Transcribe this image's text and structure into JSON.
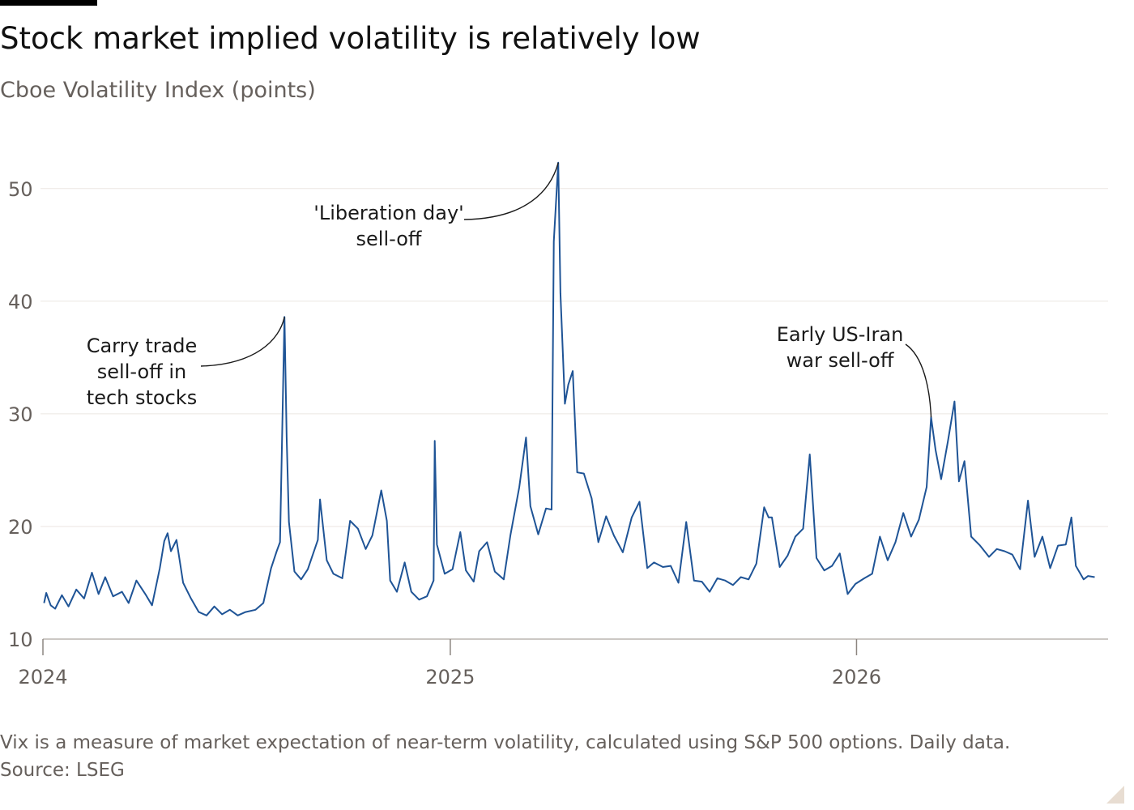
{
  "title": "Stock market implied volatility is relatively low",
  "subtitle": "Cboe Volatility Index (points)",
  "footnote": "Vix is a measure of market expectation of near-term volatility, calculated using S&P 500 options. Daily data.",
  "source": "Source: LSEG",
  "chart_data": {
    "type": "line",
    "title": "Stock market implied volatility is relatively low",
    "ylabel": "Cboe Volatility Index (points)",
    "xlabel": "",
    "ylim": [
      10,
      52
    ],
    "xlim": [
      "2024-01-01",
      "2026-08-15"
    ],
    "y_ticks": [
      10,
      20,
      30,
      40,
      50
    ],
    "x_ticks": [
      {
        "date": "2024-01-01",
        "label": "2024"
      },
      {
        "date": "2025-01-01",
        "label": "2025"
      },
      {
        "date": "2026-01-01",
        "label": "2026"
      }
    ],
    "grid": "horizontal",
    "color": "#1f5496",
    "series": [
      {
        "values": [
          [
            "2024-01-02",
            13.2
          ],
          [
            "2024-01-04",
            14.1
          ],
          [
            "2024-01-08",
            13.0
          ],
          [
            "2024-01-12",
            12.7
          ],
          [
            "2024-01-18",
            13.9
          ],
          [
            "2024-01-24",
            12.9
          ],
          [
            "2024-01-31",
            14.4
          ],
          [
            "2024-02-07",
            13.6
          ],
          [
            "2024-02-14",
            15.9
          ],
          [
            "2024-02-20",
            14.0
          ],
          [
            "2024-02-26",
            15.5
          ],
          [
            "2024-03-04",
            13.8
          ],
          [
            "2024-03-12",
            14.2
          ],
          [
            "2024-03-18",
            13.2
          ],
          [
            "2024-03-25",
            15.2
          ],
          [
            "2024-04-02",
            14.0
          ],
          [
            "2024-04-08",
            13.0
          ],
          [
            "2024-04-15",
            16.3
          ],
          [
            "2024-04-19",
            18.7
          ],
          [
            "2024-04-22",
            19.4
          ],
          [
            "2024-04-25",
            17.8
          ],
          [
            "2024-04-30",
            18.8
          ],
          [
            "2024-05-06",
            15.0
          ],
          [
            "2024-05-13",
            13.6
          ],
          [
            "2024-05-20",
            12.4
          ],
          [
            "2024-05-27",
            12.1
          ],
          [
            "2024-06-03",
            12.9
          ],
          [
            "2024-06-10",
            12.2
          ],
          [
            "2024-06-17",
            12.6
          ],
          [
            "2024-06-24",
            12.1
          ],
          [
            "2024-07-01",
            12.4
          ],
          [
            "2024-07-10",
            12.6
          ],
          [
            "2024-07-17",
            13.2
          ],
          [
            "2024-07-24",
            16.3
          ],
          [
            "2024-07-29",
            17.8
          ],
          [
            "2024-08-01",
            18.6
          ],
          [
            "2024-08-05",
            38.6
          ],
          [
            "2024-08-07",
            27.9
          ],
          [
            "2024-08-09",
            20.4
          ],
          [
            "2024-08-14",
            16.0
          ],
          [
            "2024-08-20",
            15.3
          ],
          [
            "2024-08-26",
            16.2
          ],
          [
            "2024-09-04",
            18.8
          ],
          [
            "2024-09-06",
            22.4
          ],
          [
            "2024-09-12",
            17.0
          ],
          [
            "2024-09-18",
            15.8
          ],
          [
            "2024-09-26",
            15.4
          ],
          [
            "2024-10-03",
            20.5
          ],
          [
            "2024-10-10",
            19.8
          ],
          [
            "2024-10-17",
            18.0
          ],
          [
            "2024-10-23",
            19.2
          ],
          [
            "2024-10-31",
            23.2
          ],
          [
            "2024-11-05",
            20.5
          ],
          [
            "2024-11-08",
            15.2
          ],
          [
            "2024-11-14",
            14.2
          ],
          [
            "2024-11-21",
            16.8
          ],
          [
            "2024-11-27",
            14.2
          ],
          [
            "2024-12-04",
            13.5
          ],
          [
            "2024-12-11",
            13.8
          ],
          [
            "2024-12-17",
            15.2
          ],
          [
            "2024-12-18",
            27.6
          ],
          [
            "2024-12-20",
            18.4
          ],
          [
            "2024-12-27",
            15.8
          ],
          [
            "2025-01-03",
            16.2
          ],
          [
            "2025-01-10",
            19.5
          ],
          [
            "2025-01-15",
            16.1
          ],
          [
            "2025-01-22",
            15.1
          ],
          [
            "2025-01-27",
            17.8
          ],
          [
            "2025-02-03",
            18.6
          ],
          [
            "2025-02-10",
            16.0
          ],
          [
            "2025-02-18",
            15.3
          ],
          [
            "2025-02-24",
            19.2
          ],
          [
            "2025-03-04",
            23.5
          ],
          [
            "2025-03-10",
            27.9
          ],
          [
            "2025-03-14",
            21.8
          ],
          [
            "2025-03-21",
            19.3
          ],
          [
            "2025-03-28",
            21.6
          ],
          [
            "2025-04-02",
            21.5
          ],
          [
            "2025-04-04",
            45.3
          ],
          [
            "2025-04-08",
            52.3
          ],
          [
            "2025-04-10",
            40.7
          ],
          [
            "2025-04-14",
            30.9
          ],
          [
            "2025-04-17",
            32.6
          ],
          [
            "2025-04-21",
            33.8
          ],
          [
            "2025-04-25",
            24.8
          ],
          [
            "2025-05-01",
            24.7
          ],
          [
            "2025-05-08",
            22.5
          ],
          [
            "2025-05-14",
            18.6
          ],
          [
            "2025-05-21",
            20.9
          ],
          [
            "2025-05-28",
            19.2
          ],
          [
            "2025-06-05",
            17.7
          ],
          [
            "2025-06-13",
            20.8
          ],
          [
            "2025-06-20",
            22.2
          ],
          [
            "2025-06-27",
            16.3
          ],
          [
            "2025-07-03",
            16.8
          ],
          [
            "2025-07-11",
            16.4
          ],
          [
            "2025-07-18",
            16.5
          ],
          [
            "2025-07-25",
            15.0
          ],
          [
            "2025-08-01",
            20.4
          ],
          [
            "2025-08-08",
            15.2
          ],
          [
            "2025-08-15",
            15.1
          ],
          [
            "2025-08-22",
            14.2
          ],
          [
            "2025-08-29",
            15.4
          ],
          [
            "2025-09-05",
            15.2
          ],
          [
            "2025-09-12",
            14.8
          ],
          [
            "2025-09-19",
            15.5
          ],
          [
            "2025-09-26",
            15.3
          ],
          [
            "2025-10-03",
            16.7
          ],
          [
            "2025-10-10",
            21.7
          ],
          [
            "2025-10-14",
            20.8
          ],
          [
            "2025-10-17",
            20.8
          ],
          [
            "2025-10-24",
            16.4
          ],
          [
            "2025-10-31",
            17.4
          ],
          [
            "2025-11-07",
            19.1
          ],
          [
            "2025-11-14",
            19.8
          ],
          [
            "2025-11-20",
            26.4
          ],
          [
            "2025-11-26",
            17.2
          ],
          [
            "2025-12-03",
            16.1
          ],
          [
            "2025-12-10",
            16.5
          ],
          [
            "2025-12-17",
            17.6
          ],
          [
            "2025-12-24",
            14.0
          ],
          [
            "2025-12-31",
            14.9
          ],
          [
            "2026-01-08",
            15.4
          ],
          [
            "2026-01-15",
            15.8
          ],
          [
            "2026-01-22",
            19.1
          ],
          [
            "2026-01-29",
            17.0
          ],
          [
            "2026-02-05",
            18.6
          ],
          [
            "2026-02-12",
            21.2
          ],
          [
            "2026-02-19",
            19.1
          ],
          [
            "2026-02-26",
            20.6
          ],
          [
            "2026-03-05",
            23.5
          ],
          [
            "2026-03-09",
            29.7
          ],
          [
            "2026-03-13",
            26.8
          ],
          [
            "2026-03-18",
            24.2
          ],
          [
            "2026-03-24",
            27.5
          ],
          [
            "2026-03-30",
            31.1
          ],
          [
            "2026-04-03",
            24.0
          ],
          [
            "2026-04-08",
            25.8
          ],
          [
            "2026-04-14",
            19.1
          ],
          [
            "2026-04-22",
            18.3
          ],
          [
            "2026-04-30",
            17.3
          ],
          [
            "2026-05-07",
            18.0
          ],
          [
            "2026-05-14",
            17.8
          ],
          [
            "2026-05-21",
            17.5
          ],
          [
            "2026-05-28",
            16.2
          ],
          [
            "2026-06-04",
            22.3
          ],
          [
            "2026-06-10",
            17.3
          ],
          [
            "2026-06-17",
            19.1
          ],
          [
            "2026-06-24",
            16.3
          ],
          [
            "2026-07-01",
            18.3
          ],
          [
            "2026-07-08",
            18.4
          ],
          [
            "2026-07-13",
            20.8
          ],
          [
            "2026-07-17",
            16.5
          ],
          [
            "2026-07-24",
            15.3
          ],
          [
            "2026-07-28",
            15.6
          ],
          [
            "2026-08-03",
            15.5
          ]
        ]
      }
    ],
    "annotations": [
      {
        "lines": [
          "Carry trade",
          "sell-off in",
          "tech stocks"
        ],
        "date": "2024-08-05",
        "value": 38.6
      },
      {
        "lines": [
          "'Liberation day'",
          "sell-off"
        ],
        "date": "2025-04-08",
        "value": 52.3
      },
      {
        "lines": [
          "Early US-Iran",
          "war sell-off"
        ],
        "date": "2026-03-09",
        "value": 29.7
      }
    ]
  }
}
